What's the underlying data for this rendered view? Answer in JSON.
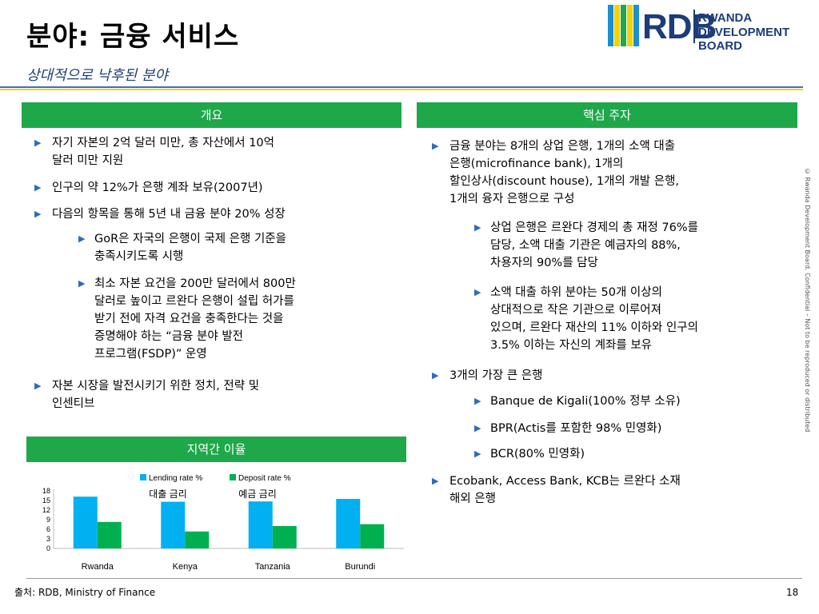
{
  "title": "분야: 금융 서비스",
  "subtitle": "상대적으로 낙후된 분야",
  "logo": {
    "mark": "RDB",
    "line1": "RWANDA",
    "line2": "DEVELOPMENT BOARD"
  },
  "left_header": "개요",
  "right_header": "핵심 주자",
  "chart_header": "지역간 이율",
  "left_bullets": [
    {
      "l1": "자기 자본의 2억 달러 미만, 총 자산에서 10억",
      "l2": "달러 미만 지원"
    },
    {
      "l1": "인구의 약 12%가 은행 계좌 보유(2007년)"
    },
    {
      "l1": "다음의 항목을 통해 5년 내 금융 분야 20% 성장"
    },
    {
      "l1": "GoR은 자국의 은행이 국제 은행 기준을",
      "l2": "충족시키도록 시행"
    },
    {
      "l1": "최소 자본 요건을 200만 달러에서 800만",
      "l2": "달러로 높이고 르완다 은행이 설립 허가를",
      "l3": "받기 전에 자격 요건을 충족한다는 것을",
      "l4": "증명해야 하는 “금융 분야 발전",
      "l5": "프로그램(FSDP)” 운영"
    },
    {
      "l1": "자본 시장을 발전시키기 위한 정치, 전략 및",
      "l2": "인센티브"
    }
  ],
  "right_bullets": [
    {
      "l1": "금융 분야는 8개의 상업 은행, 1개의 소액 대출",
      "l2": "은행(microfinance bank), 1개의",
      "l3": "할인상사(discount house), 1개의 개발 은행,",
      "l4": "1개의 융자 은행으로 구성"
    },
    {
      "l1": "상업 은행은 르완다 경제의 총 재정 76%를",
      "l2": "담당, 소액 대출 기관은 예금자의 88%,",
      "l3": "차용자의 90%를 담당"
    },
    {
      "l1": "소액 대출 하위 분야는 50개 이상의",
      "l2": "상대적으로 작은 기관으로 이루어져",
      "l3": "있으며, 르완다 재산의 11% 이하와 인구의",
      "l4": "3.5% 이하는 자신의 계좌를 보유"
    },
    {
      "l1": "3개의 가장 큰 은행"
    },
    {
      "l1": "Banque de Kigali(100% 정부 소유)"
    },
    {
      "l1": "BPR(Actis를 포함한 98% 민영화)"
    },
    {
      "l1": "BCR(80% 민영화)"
    },
    {
      "l1": "Ecobank, Access Bank, KCB는 르완다 소재",
      "l2": "해외 은행"
    }
  ],
  "chart_data": {
    "type": "bar",
    "categories": [
      "Rwanda",
      "Kenya",
      "Tanzania",
      "Burundi"
    ],
    "series": [
      {
        "name": "Lending rate %",
        "name_ko": "대출 금리",
        "color": "#00b0f0",
        "values": [
          16.2,
          14.6,
          14.7,
          15.5
        ]
      },
      {
        "name": "Deposit rate %",
        "name_ko": "예금 금리",
        "color": "#00b050",
        "values": [
          8.3,
          5.3,
          7.0,
          7.6
        ]
      }
    ],
    "yticks": [
      "18",
      "15",
      "12",
      "9",
      "6",
      "3",
      "0"
    ],
    "ylim": [
      0,
      18
    ],
    "legend_position": "top"
  },
  "vertical_note": "© Rwanda Development Board. Confidential – Not to be reproduced or distributed",
  "source": "출처: RDB, Ministry of Finance",
  "page_number": "18"
}
